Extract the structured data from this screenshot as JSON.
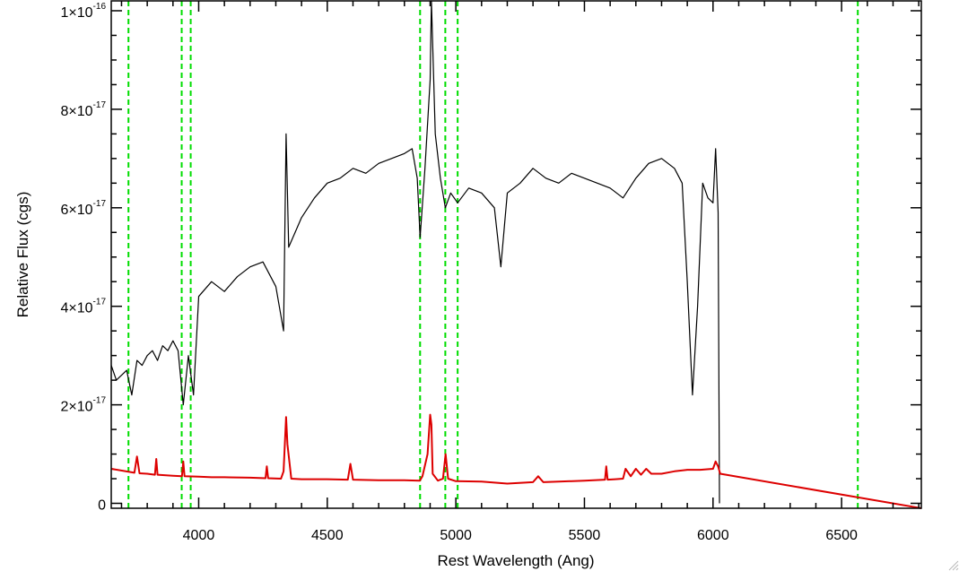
{
  "chart_data": {
    "type": "line",
    "title": "",
    "xlabel": "Rest Wavelength (Ang)",
    "ylabel": "Relative Flux (cgs)",
    "xlim": [
      3660,
      6810
    ],
    "ylim": [
      -1e-18,
      1.02e-16
    ],
    "grid": false,
    "x_ticks": [
      {
        "value": 4000,
        "label": "4000"
      },
      {
        "value": 4500,
        "label": "4500"
      },
      {
        "value": 5000,
        "label": "5000"
      },
      {
        "value": 5500,
        "label": "5500"
      },
      {
        "value": 6000,
        "label": "6000"
      },
      {
        "value": 6500,
        "label": "6500"
      }
    ],
    "y_ticks": [
      {
        "value": 0,
        "mantissa": "0",
        "exp": ""
      },
      {
        "value": 2e-17,
        "mantissa": "2×10",
        "exp": "-17"
      },
      {
        "value": 4e-17,
        "mantissa": "4×10",
        "exp": "-17"
      },
      {
        "value": 6e-17,
        "mantissa": "6×10",
        "exp": "-17"
      },
      {
        "value": 8e-17,
        "mantissa": "8×10",
        "exp": "-17"
      },
      {
        "value": 1e-16,
        "mantissa": "1×10",
        "exp": "-16"
      }
    ],
    "reference_lines": [
      {
        "x": 3727,
        "color": "#00dd00"
      },
      {
        "x": 3934,
        "color": "#00dd00"
      },
      {
        "x": 3969,
        "color": "#00dd00"
      },
      {
        "x": 4861,
        "color": "#00dd00"
      },
      {
        "x": 4959,
        "color": "#00dd00"
      },
      {
        "x": 5007,
        "color": "#00dd00"
      },
      {
        "x": 6563,
        "color": "#00dd00"
      }
    ],
    "series": [
      {
        "color": "#000000",
        "x": [
          3660,
          3680,
          3700,
          3720,
          3740,
          3760,
          3780,
          3800,
          3820,
          3840,
          3860,
          3880,
          3900,
          3920,
          3940,
          3960,
          3980,
          4000,
          4050,
          4100,
          4150,
          4200,
          4250,
          4300,
          4330,
          4340,
          4350,
          4400,
          4450,
          4500,
          4550,
          4600,
          4650,
          4700,
          4750,
          4800,
          4830,
          4850,
          4861,
          4880,
          4900,
          4905,
          4920,
          4940,
          4959,
          4980,
          5007,
          5050,
          5100,
          5150,
          5175,
          5200,
          5250,
          5300,
          5350,
          5400,
          5450,
          5500,
          5550,
          5600,
          5650,
          5700,
          5750,
          5800,
          5850,
          5880,
          5900,
          5920,
          5940,
          5960,
          5980,
          6000,
          6010,
          6020,
          6025
        ],
        "y": [
          2.8e-17,
          2.5e-17,
          2.6e-17,
          2.7e-17,
          2.2e-17,
          2.9e-17,
          2.8e-17,
          3e-17,
          3.1e-17,
          2.9e-17,
          3.2e-17,
          3.1e-17,
          3.3e-17,
          3.1e-17,
          2e-17,
          3e-17,
          2.2e-17,
          4.2e-17,
          4.5e-17,
          4.3e-17,
          4.6e-17,
          4.8e-17,
          4.9e-17,
          4.4e-17,
          3.5e-17,
          7.5e-17,
          5.2e-17,
          5.8e-17,
          6.2e-17,
          6.5e-17,
          6.6e-17,
          6.8e-17,
          6.7e-17,
          6.9e-17,
          7e-17,
          7.1e-17,
          7.2e-17,
          6.6e-17,
          5.4e-17,
          6.8e-17,
          8.6e-17,
          1.02e-16,
          7.5e-17,
          6.6e-17,
          6e-17,
          6.3e-17,
          6.1e-17,
          6.4e-17,
          6.3e-17,
          6e-17,
          4.8e-17,
          6.3e-17,
          6.5e-17,
          6.8e-17,
          6.6e-17,
          6.5e-17,
          6.7e-17,
          6.6e-17,
          6.5e-17,
          6.4e-17,
          6.2e-17,
          6.6e-17,
          6.9e-17,
          7e-17,
          6.8e-17,
          6.5e-17,
          4.5e-17,
          2.2e-17,
          4e-17,
          6.5e-17,
          6.2e-17,
          6.1e-17,
          7.2e-17,
          5.9e-17,
          0
        ]
      },
      {
        "color": "#dd0000",
        "x": [
          3660,
          3750,
          3760,
          3770,
          3800,
          3830,
          3835,
          3840,
          3900,
          3935,
          3940,
          3945,
          4000,
          4050,
          4100,
          4200,
          4260,
          4265,
          4270,
          4320,
          4330,
          4340,
          4345,
          4360,
          4400,
          4500,
          4580,
          4590,
          4600,
          4700,
          4800,
          4860,
          4870,
          4890,
          4900,
          4905,
          4910,
          4930,
          4950,
          4960,
          4970,
          5000,
          5100,
          5200,
          5300,
          5320,
          5340,
          5400,
          5500,
          5580,
          5585,
          5590,
          5620,
          5650,
          5660,
          5680,
          5700,
          5720,
          5740,
          5760,
          5800,
          5850,
          5900,
          5950,
          6000,
          6010,
          6020,
          6028,
          6810
        ],
        "y": [
          7e-18,
          6.2e-18,
          9.5e-18,
          6.1e-18,
          6e-18,
          5.8e-18,
          9e-18,
          5.8e-18,
          5.6e-18,
          5.5e-18,
          8.5e-18,
          5.5e-18,
          5.4e-18,
          5.3e-18,
          5.3e-18,
          5.2e-18,
          5.1e-18,
          7.5e-18,
          5.1e-18,
          5e-18,
          6.5e-18,
          1.75e-17,
          1.2e-17,
          5e-18,
          4.9e-18,
          4.9e-18,
          4.8e-18,
          8e-18,
          4.8e-18,
          4.7e-18,
          4.7e-18,
          4.6e-18,
          5.5e-18,
          1e-17,
          1.8e-17,
          1.6e-17,
          6e-18,
          4.6e-18,
          5e-18,
          1e-17,
          5e-18,
          4.5e-18,
          4.4e-18,
          4e-18,
          4.3e-18,
          5.5e-18,
          4.3e-18,
          4.4e-18,
          4.6e-18,
          4.8e-18,
          7.5e-18,
          4.8e-18,
          4.9e-18,
          5e-18,
          7e-18,
          5.5e-18,
          7e-18,
          5.8e-18,
          7e-18,
          6e-18,
          6e-18,
          6.5e-18,
          6.8e-18,
          6.8e-18,
          7e-18,
          8.5e-18,
          7.5e-18,
          6e-18,
          -1e-18
        ]
      }
    ]
  }
}
